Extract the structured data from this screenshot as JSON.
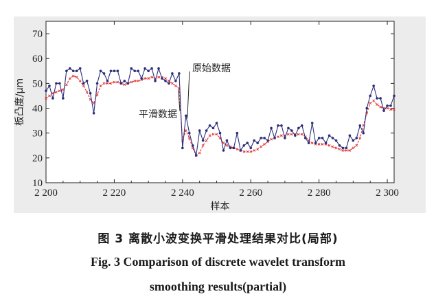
{
  "chart_data": {
    "type": "line",
    "title": "",
    "xlabel": "样本",
    "ylabel": "板凸度/μm",
    "xlim": [
      2200,
      2302
    ],
    "ylim": [
      10,
      75
    ],
    "x_ticks": [
      2200,
      2220,
      2240,
      2260,
      2280,
      2300
    ],
    "x_tick_labels": [
      "2 200",
      "2 220",
      "2 240",
      "2 260",
      "2 280",
      "2 300"
    ],
    "y_ticks": [
      10,
      20,
      30,
      40,
      50,
      60,
      70
    ],
    "y_tick_labels": [
      "10",
      "20",
      "30",
      "40",
      "50",
      "60",
      "70"
    ],
    "grid": false,
    "x": [
      2200,
      2201,
      2202,
      2203,
      2204,
      2205,
      2206,
      2207,
      2208,
      2209,
      2210,
      2211,
      2212,
      2213,
      2214,
      2215,
      2216,
      2217,
      2218,
      2219,
      2220,
      2221,
      2222,
      2223,
      2224,
      2225,
      2226,
      2227,
      2228,
      2229,
      2230,
      2231,
      2232,
      2233,
      2234,
      2235,
      2236,
      2237,
      2238,
      2239,
      2240,
      2241,
      2242,
      2243,
      2244,
      2245,
      2246,
      2247,
      2248,
      2249,
      2250,
      2251,
      2252,
      2253,
      2254,
      2255,
      2256,
      2257,
      2258,
      2259,
      2260,
      2261,
      2262,
      2263,
      2264,
      2265,
      2266,
      2267,
      2268,
      2269,
      2270,
      2271,
      2272,
      2273,
      2274,
      2275,
      2276,
      2277,
      2278,
      2279,
      2280,
      2281,
      2282,
      2283,
      2284,
      2285,
      2286,
      2287,
      2288,
      2289,
      2290,
      2291,
      2292,
      2293,
      2294,
      2295,
      2296,
      2297,
      2298,
      2299,
      2300,
      2301,
      2302
    ],
    "series": [
      {
        "name": "原始数据",
        "color": "#2b2f7a",
        "values": [
          47,
          49,
          44,
          50,
          50,
          44,
          55,
          56,
          55,
          55,
          56,
          50,
          51,
          46,
          38,
          50,
          55,
          54,
          51,
          55,
          55,
          55,
          50,
          51,
          50,
          56,
          55,
          55,
          52,
          56,
          55,
          56,
          51,
          56,
          52,
          51,
          50,
          54,
          51,
          54,
          24,
          37,
          30,
          25,
          21,
          31,
          27,
          31,
          33,
          32,
          34,
          30,
          23,
          27,
          24,
          24,
          30,
          23,
          25,
          26,
          24,
          27,
          26,
          28,
          28,
          27,
          32,
          28,
          33,
          33,
          28,
          32,
          31,
          29,
          32,
          33,
          28,
          26,
          34,
          26,
          28,
          28,
          26,
          29,
          28,
          27,
          25,
          24,
          24,
          29,
          27,
          28,
          33,
          30,
          40,
          45,
          49,
          44,
          44,
          39,
          41,
          41,
          45
        ],
        "marker": "dot"
      },
      {
        "name": "平滑数据",
        "color": "#e23838",
        "values": [
          44,
          45,
          46,
          46.5,
          47,
          47.5,
          49.5,
          52,
          53,
          52.5,
          51,
          49,
          46.5,
          43.5,
          42,
          45.5,
          49,
          50,
          50,
          50,
          50.5,
          50.5,
          50,
          49.5,
          50,
          50.5,
          51,
          51,
          51.5,
          52,
          52,
          52.5,
          52,
          52.5,
          52.5,
          52,
          51,
          50,
          49,
          48,
          27,
          31,
          28,
          24,
          21,
          22,
          25,
          27,
          29,
          29.5,
          29.5,
          28,
          26,
          25,
          24.5,
          24,
          23.5,
          23,
          22.5,
          22.5,
          22.5,
          23,
          23.5,
          24.5,
          25.5,
          26.5,
          27.5,
          28,
          28.5,
          29,
          29,
          29.5,
          29.5,
          29.5,
          29.5,
          29.5,
          28.5,
          27,
          26,
          25.5,
          25.5,
          25.5,
          25.5,
          25,
          24.5,
          24,
          23.5,
          23,
          23,
          23,
          24,
          25,
          28,
          33,
          38,
          42,
          43,
          41.5,
          40.5,
          40,
          40,
          39.5,
          39.5
        ],
        "marker": "x"
      }
    ],
    "annotations": [
      {
        "text": "原始数据",
        "x": 2241,
        "y": 52
      },
      {
        "text": "平滑数据",
        "x": 2239,
        "y": 46
      }
    ]
  },
  "caption": {
    "cn": "图 3 离散小波变换平滑处理结果对比(局部)",
    "en_line1": "Fig. 3 Comparison of discrete wavelet transform",
    "en_line2": "smoothing results(partial)"
  }
}
